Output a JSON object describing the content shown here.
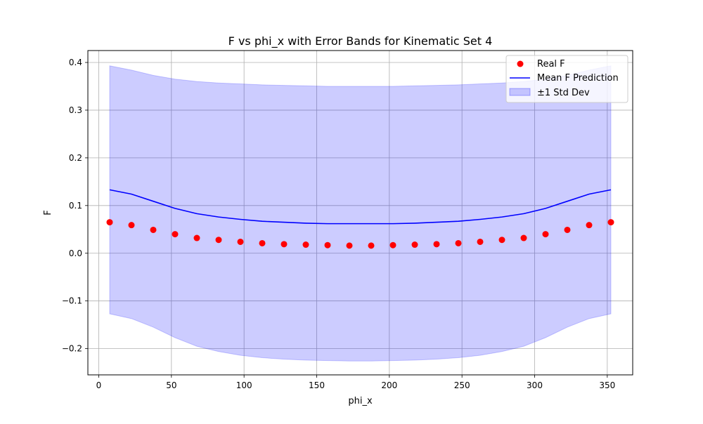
{
  "chart_data": {
    "type": "line",
    "title": "F vs phi_x with Error Bands for Kinematic Set 4",
    "xlabel": "phi_x",
    "ylabel": "F",
    "xlim": [
      -7.5,
      367.5
    ],
    "ylim": [
      -0.255,
      0.425
    ],
    "xticks": [
      0,
      50,
      100,
      150,
      200,
      250,
      300,
      350
    ],
    "yticks": [
      -0.2,
      -0.1,
      0.0,
      0.1,
      0.2,
      0.3,
      0.4
    ],
    "xtick_labels": [
      "0",
      "50",
      "100",
      "150",
      "200",
      "250",
      "300",
      "350"
    ],
    "ytick_labels": [
      "−0.2",
      "−0.1",
      "0.0",
      "0.1",
      "0.2",
      "0.3",
      "0.4"
    ],
    "grid": true,
    "legend_position": "top-right",
    "x": [
      7.5,
      22.5,
      37.5,
      52.5,
      67.5,
      82.5,
      97.5,
      112.5,
      127.5,
      142.5,
      157.5,
      172.5,
      187.5,
      202.5,
      217.5,
      232.5,
      247.5,
      262.5,
      277.5,
      292.5,
      307.5,
      322.5,
      337.5,
      352.5
    ],
    "series": [
      {
        "name": "Real F",
        "kind": "scatter",
        "color": "#ff0000",
        "values": [
          0.065,
          0.059,
          0.049,
          0.04,
          0.032,
          0.028,
          0.024,
          0.021,
          0.019,
          0.018,
          0.017,
          0.016,
          0.016,
          0.017,
          0.018,
          0.019,
          0.021,
          0.024,
          0.028,
          0.032,
          0.04,
          0.049,
          0.059,
          0.065
        ]
      },
      {
        "name": "Mean F Prediction",
        "kind": "line",
        "color": "#0000ff",
        "values": [
          0.133,
          0.124,
          0.109,
          0.094,
          0.083,
          0.076,
          0.071,
          0.067,
          0.065,
          0.063,
          0.062,
          0.062,
          0.062,
          0.062,
          0.063,
          0.065,
          0.067,
          0.071,
          0.076,
          0.083,
          0.094,
          0.109,
          0.124,
          0.133
        ]
      },
      {
        "name": "±1 Std Dev",
        "kind": "band",
        "color": "#0000ff",
        "upper": [
          0.393,
          0.384,
          0.373,
          0.365,
          0.36,
          0.357,
          0.355,
          0.353,
          0.352,
          0.351,
          0.35,
          0.35,
          0.35,
          0.35,
          0.351,
          0.352,
          0.353,
          0.355,
          0.357,
          0.36,
          0.365,
          0.373,
          0.384,
          0.393
        ],
        "lower": [
          -0.127,
          -0.137,
          -0.155,
          -0.177,
          -0.195,
          -0.206,
          -0.214,
          -0.219,
          -0.222,
          -0.224,
          -0.225,
          -0.226,
          -0.226,
          -0.225,
          -0.224,
          -0.222,
          -0.219,
          -0.214,
          -0.206,
          -0.195,
          -0.177,
          -0.155,
          -0.137,
          -0.127
        ]
      }
    ]
  }
}
